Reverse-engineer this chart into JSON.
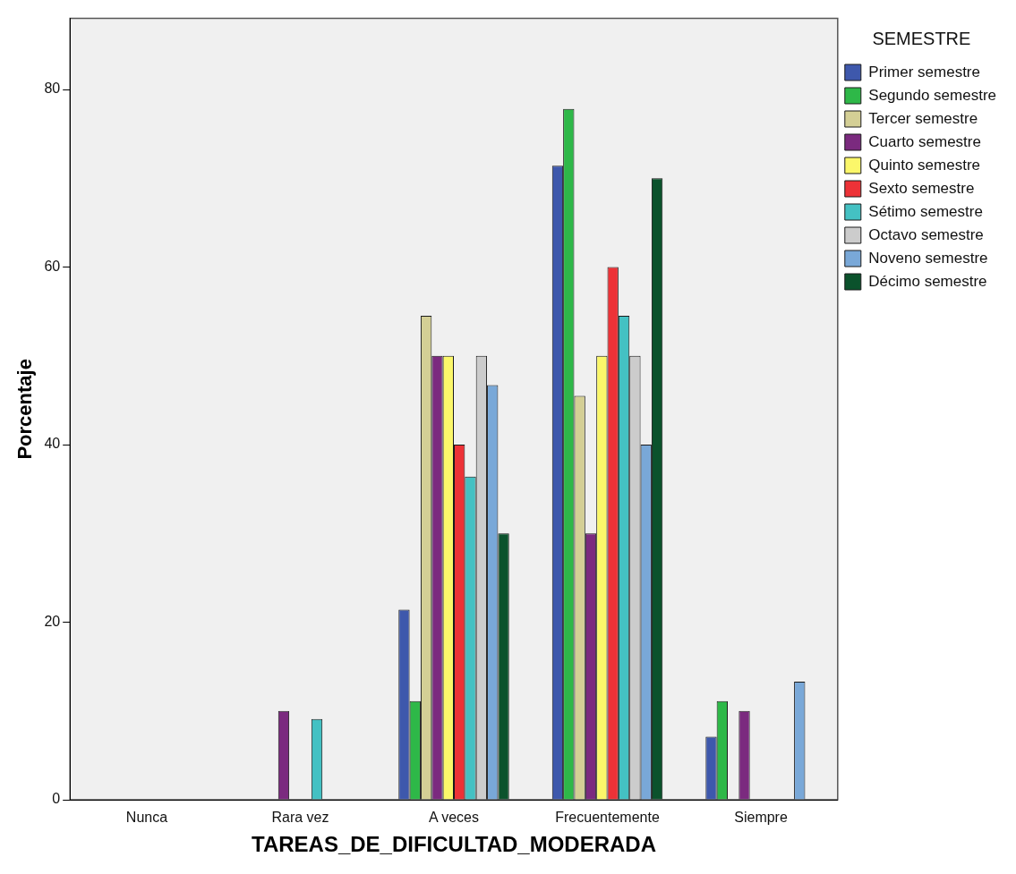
{
  "chart_data": {
    "type": "bar",
    "xlabel": "TAREAS_DE_DIFICULTAD_MODERADA",
    "ylabel": "Porcentaje",
    "legend_title": "SEMESTRE",
    "legend": "right",
    "grid": false,
    "categories": [
      "Nunca",
      "Rara vez",
      "A veces",
      "Frecuentemente",
      "Siempre"
    ],
    "ylim": [
      0,
      88
    ],
    "yticks": [
      0,
      20,
      40,
      60,
      80
    ],
    "series": [
      {
        "name": "Primer semestre",
        "color": "#3e58ac",
        "values": [
          null,
          null,
          21.4,
          71.4,
          7.1
        ]
      },
      {
        "name": "Segundo semestre",
        "color": "#2eb848",
        "values": [
          null,
          null,
          11.1,
          77.8,
          11.1
        ]
      },
      {
        "name": "Tercer semestre",
        "color": "#d4cf95",
        "values": [
          null,
          null,
          54.5,
          45.5,
          null
        ]
      },
      {
        "name": "Cuarto semestre",
        "color": "#7b2a7f",
        "values": [
          null,
          10,
          50,
          30,
          10
        ]
      },
      {
        "name": "Quinto semestre",
        "color": "#fbf76a",
        "values": [
          null,
          null,
          50,
          50,
          null
        ]
      },
      {
        "name": "Sexto semestre",
        "color": "#ed3237",
        "values": [
          null,
          null,
          40,
          60,
          null
        ]
      },
      {
        "name": "Sétimo semestre",
        "color": "#44c1c3",
        "values": [
          null,
          9.1,
          36.4,
          54.5,
          null
        ]
      },
      {
        "name": "Octavo semestre",
        "color": "#cccccc",
        "values": [
          null,
          null,
          50,
          50,
          null
        ]
      },
      {
        "name": "Noveno semestre",
        "color": "#79a8d8",
        "values": [
          null,
          null,
          46.7,
          40,
          13.3
        ]
      },
      {
        "name": "Décimo semestre",
        "color": "#0b522c",
        "values": [
          null,
          null,
          30,
          70,
          null
        ]
      }
    ]
  }
}
